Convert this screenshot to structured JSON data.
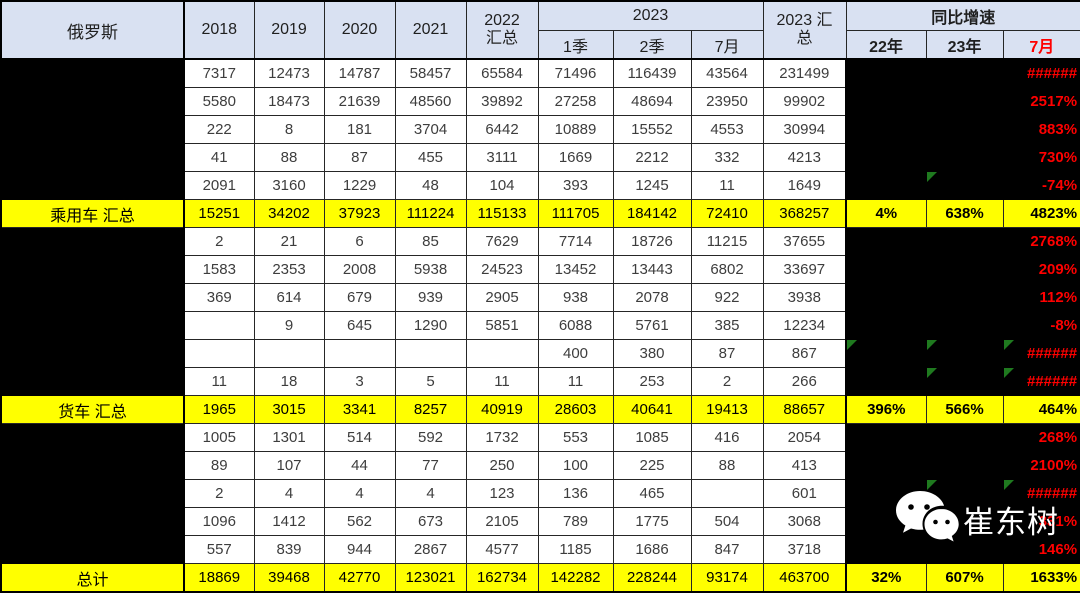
{
  "header": {
    "label": "俄罗斯",
    "year_cols": [
      "2018",
      "2019",
      "2020",
      "2021"
    ],
    "total_2022": "2022 汇总",
    "group_2023": "2023",
    "sub_2023": [
      "1季",
      "2季",
      "7月"
    ],
    "total_2023": "2023 汇总",
    "group_growth": "同比增速",
    "sub_growth": [
      "22年",
      "23年",
      "7月"
    ]
  },
  "rows": [
    {
      "label": "",
      "summary": false,
      "values": [
        "7317",
        "12473",
        "14787",
        "58457",
        "65584",
        "71496",
        "116439",
        "43564",
        "231499"
      ],
      "growth": [
        "",
        "",
        "######"
      ],
      "triangles": [
        false,
        false,
        false
      ]
    },
    {
      "label": "",
      "summary": false,
      "values": [
        "5580",
        "18473",
        "21639",
        "48560",
        "39892",
        "27258",
        "48694",
        "23950",
        "99902"
      ],
      "growth": [
        "",
        "",
        "2517%"
      ],
      "triangles": [
        false,
        false,
        false
      ]
    },
    {
      "label": "",
      "summary": false,
      "values": [
        "222",
        "8",
        "181",
        "3704",
        "6442",
        "10889",
        "15552",
        "4553",
        "30994"
      ],
      "growth": [
        "",
        "",
        "883%"
      ],
      "triangles": [
        false,
        false,
        false
      ]
    },
    {
      "label": "",
      "summary": false,
      "values": [
        "41",
        "88",
        "87",
        "455",
        "3111",
        "1669",
        "2212",
        "332",
        "4213"
      ],
      "growth": [
        "",
        "",
        "730%"
      ],
      "triangles": [
        false,
        false,
        false
      ]
    },
    {
      "label": "",
      "summary": false,
      "values": [
        "2091",
        "3160",
        "1229",
        "48",
        "104",
        "393",
        "1245",
        "11",
        "1649"
      ],
      "growth": [
        "",
        "",
        "-74%"
      ],
      "triangles": [
        false,
        true,
        false
      ]
    },
    {
      "label": "乘用车 汇总",
      "summary": true,
      "values": [
        "15251",
        "34202",
        "37923",
        "111224",
        "115133",
        "111705",
        "184142",
        "72410",
        "368257"
      ],
      "growth": [
        "4%",
        "638%",
        "4823%"
      ],
      "triangles": [
        false,
        false,
        false
      ]
    },
    {
      "label": "",
      "summary": false,
      "values": [
        "2",
        "21",
        "6",
        "85",
        "7629",
        "7714",
        "18726",
        "11215",
        "37655"
      ],
      "growth": [
        "",
        "",
        "2768%"
      ],
      "triangles": [
        false,
        false,
        false
      ]
    },
    {
      "label": "",
      "summary": false,
      "values": [
        "1583",
        "2353",
        "2008",
        "5938",
        "24523",
        "13452",
        "13443",
        "6802",
        "33697"
      ],
      "growth": [
        "",
        "",
        "209%"
      ],
      "triangles": [
        false,
        false,
        false
      ]
    },
    {
      "label": "",
      "summary": false,
      "values": [
        "369",
        "614",
        "679",
        "939",
        "2905",
        "938",
        "2078",
        "922",
        "3938"
      ],
      "growth": [
        "",
        "",
        "112%"
      ],
      "triangles": [
        false,
        false,
        false
      ]
    },
    {
      "label": "",
      "summary": false,
      "values": [
        "",
        "9",
        "645",
        "1290",
        "5851",
        "6088",
        "5761",
        "385",
        "12234"
      ],
      "growth": [
        "",
        "",
        "-8%"
      ],
      "triangles": [
        false,
        false,
        false
      ]
    },
    {
      "label": "",
      "summary": false,
      "values": [
        "",
        "",
        "",
        "",
        "",
        "400",
        "380",
        "87",
        "867"
      ],
      "growth": [
        "",
        "",
        "######"
      ],
      "triangles": [
        true,
        true,
        true
      ]
    },
    {
      "label": "",
      "summary": false,
      "values": [
        "11",
        "18",
        "3",
        "5",
        "11",
        "11",
        "253",
        "2",
        "266"
      ],
      "growth": [
        "",
        "",
        "######"
      ],
      "triangles": [
        false,
        true,
        true
      ]
    },
    {
      "label": "货车 汇总",
      "summary": true,
      "values": [
        "1965",
        "3015",
        "3341",
        "8257",
        "40919",
        "28603",
        "40641",
        "19413",
        "88657"
      ],
      "growth": [
        "396%",
        "566%",
        "464%"
      ],
      "triangles": [
        false,
        false,
        false
      ]
    },
    {
      "label": "",
      "summary": false,
      "values": [
        "1005",
        "1301",
        "514",
        "592",
        "1732",
        "553",
        "1085",
        "416",
        "2054"
      ],
      "growth": [
        "",
        "",
        "268%"
      ],
      "triangles": [
        false,
        false,
        false
      ]
    },
    {
      "label": "",
      "summary": false,
      "values": [
        "89",
        "107",
        "44",
        "77",
        "250",
        "100",
        "225",
        "88",
        "413"
      ],
      "growth": [
        "",
        "",
        "2100%"
      ],
      "triangles": [
        false,
        false,
        false
      ]
    },
    {
      "label": "",
      "summary": false,
      "values": [
        "2",
        "4",
        "4",
        "4",
        "123",
        "136",
        "465",
        "",
        "601"
      ],
      "growth": [
        "",
        "",
        "######"
      ],
      "triangles": [
        false,
        true,
        true
      ]
    },
    {
      "label": "",
      "summary": false,
      "values": [
        "1096",
        "1412",
        "562",
        "673",
        "2105",
        "789",
        "1775",
        "504",
        "3068"
      ],
      "growth": [
        "",
        "",
        "331%"
      ],
      "triangles": [
        false,
        false,
        false
      ]
    },
    {
      "label": "",
      "summary": false,
      "values": [
        "557",
        "839",
        "944",
        "2867",
        "4577",
        "1185",
        "1686",
        "847",
        "3718"
      ],
      "growth": [
        "",
        "",
        "146%"
      ],
      "triangles": [
        false,
        false,
        false
      ]
    },
    {
      "label": "总计",
      "summary": true,
      "values": [
        "18869",
        "39468",
        "42770",
        "123021",
        "162734",
        "142282",
        "228244",
        "93174",
        "463700"
      ],
      "growth": [
        "32%",
        "607%",
        "1633%"
      ],
      "triangles": [
        false,
        false,
        false
      ]
    }
  ],
  "watermark": {
    "text": "崔东树",
    "icon": "wechat-icon"
  },
  "colors": {
    "header_bg": "#D9E1F2",
    "highlight_yellow": "#FFFF00",
    "growth_red": "#FF0000",
    "triangle_green": "#1F7A1F",
    "redaction_black": "#000000",
    "grid_line": "#262626"
  }
}
